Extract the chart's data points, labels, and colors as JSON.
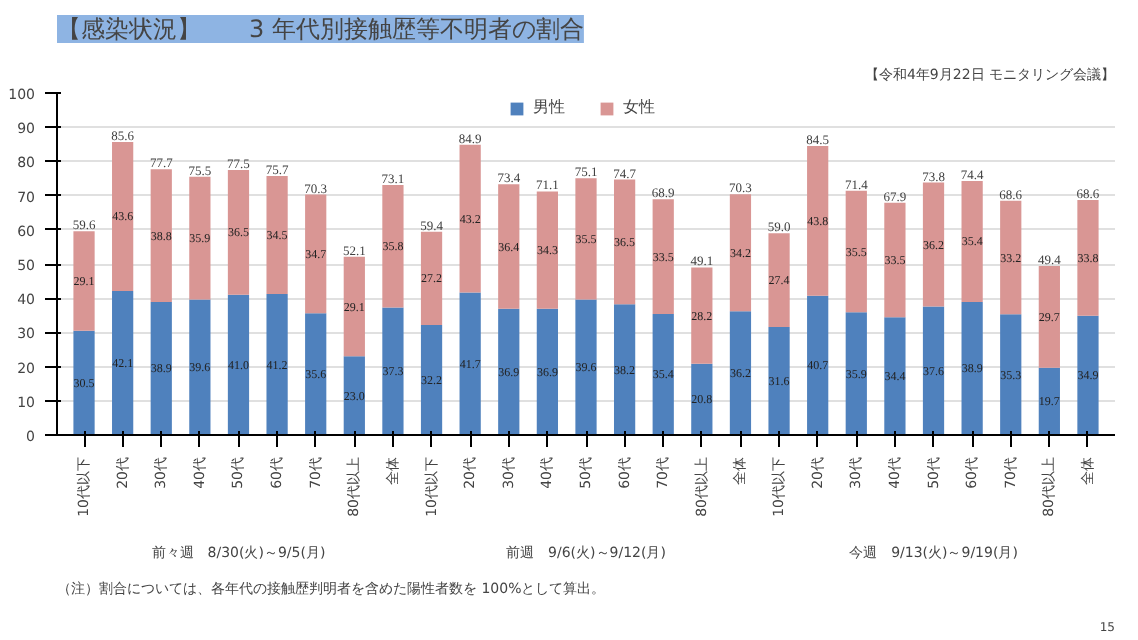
{
  "chart_data": {
    "type": "bar",
    "title": "【感染状況】　　3 年代別接触歴等不明者の割合",
    "stacked": true,
    "categories": [
      "10代以下",
      "20代",
      "30代",
      "40代",
      "50代",
      "60代",
      "70代",
      "80代以上",
      "全体",
      "10代以下",
      "20代",
      "30代",
      "40代",
      "50代",
      "60代",
      "70代",
      "80代以上",
      "全体",
      "10代以下",
      "20代",
      "30代",
      "40代",
      "50代",
      "60代",
      "70代",
      "80代以上",
      "全体"
    ],
    "series": [
      {
        "name": "男性",
        "color": "#4f81bd",
        "values": [
          30.5,
          42.1,
          38.9,
          39.6,
          41.0,
          41.2,
          35.6,
          23.0,
          37.3,
          32.2,
          41.7,
          36.9,
          36.9,
          39.6,
          38.2,
          35.4,
          20.8,
          36.2,
          31.6,
          40.7,
          35.9,
          34.4,
          37.6,
          38.9,
          35.3,
          19.7,
          34.9
        ],
        "value_labels": [
          "30.5",
          "42.1",
          "38.9",
          "39.6",
          "41.0",
          "41.2",
          "35.6",
          "23.0",
          "37.3",
          "32.2",
          "41.7",
          "36.9",
          "36.9",
          "39.6",
          "38.2",
          "35.4",
          "20.8",
          "36.2",
          "31.6",
          "40.7",
          "35.9",
          "34.4",
          "37.6",
          "38.9",
          "35.3",
          "19.7",
          "34.9"
        ]
      },
      {
        "name": "女性",
        "color": "#d99694",
        "values": [
          29.1,
          43.6,
          38.8,
          35.9,
          36.5,
          34.5,
          34.7,
          29.1,
          35.8,
          27.2,
          43.2,
          36.4,
          34.3,
          35.5,
          36.5,
          33.5,
          28.2,
          34.2,
          27.4,
          43.8,
          35.5,
          33.5,
          36.2,
          35.4,
          33.2,
          29.7,
          33.8
        ]
      }
    ],
    "totals": [
      "59.6",
      "85.6",
      "77.7",
      "75.5",
      "77.5",
      "75.7",
      "70.3",
      "52.1",
      "73.1",
      "59.4",
      "84.9",
      "73.4",
      "71.1",
      "75.1",
      "74.7",
      "68.9",
      "49.1",
      "70.3",
      "59.0",
      "84.5",
      "71.4",
      "67.9",
      "73.8",
      "74.4",
      "68.6",
      "49.4",
      "68.6"
    ],
    "data_labels": true,
    "ylim": [
      0,
      100
    ],
    "yticks": [
      0,
      10,
      20,
      30,
      40,
      50,
      60,
      70,
      80,
      90,
      100
    ],
    "grid": "y",
    "legend": "top",
    "annotations": [
      "前々週　8/30(火)～9/5(月)",
      "前週　9/6(火)～9/12(月)",
      "今週　9/13(火)～9/19(月)",
      "（注）割合については、各年代の接触歴判明者を含めた陽性者数を 100%として算出。",
      "15",
      "【令和4年9月22日 モニタリング会議】"
    ]
  }
}
